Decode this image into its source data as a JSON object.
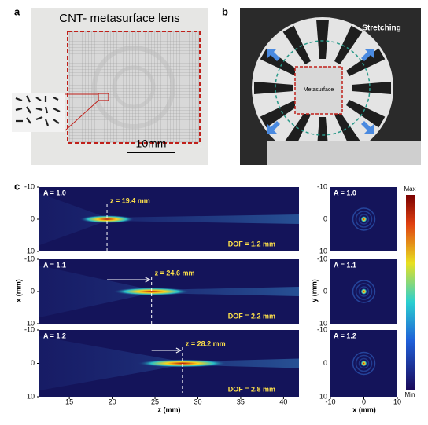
{
  "panel_a": {
    "label": "a",
    "title": "CNT- metasurface lens",
    "scale_bar": "10mm"
  },
  "panel_b": {
    "label": "b",
    "stretching": "Stretching",
    "sample": "Metasurface"
  },
  "panel_c": {
    "label": "c",
    "x_axis_label": "z (mm)",
    "y_axis_label": "x (mm)",
    "zlim": [
      11.5,
      41.8
    ],
    "zticks": [
      15,
      20,
      25,
      30,
      35,
      40
    ],
    "xlim": [
      -10,
      10
    ],
    "xticks": [
      -10,
      0,
      10
    ],
    "rows": [
      {
        "A": {
          "value": 1.0,
          "label": "A = 1.0"
        },
        "focus": {
          "value": 19.4,
          "label": "z = 19.4 mm"
        },
        "dof": {
          "value": 1.2,
          "label": "DOF = 1.2 mm"
        }
      },
      {
        "A": {
          "value": 1.1,
          "label": "A = 1.1"
        },
        "focus": {
          "value": 24.6,
          "label": "z = 24.6 mm"
        },
        "dof": {
          "value": 2.2,
          "label": "DOF = 2.2 mm"
        }
      },
      {
        "A": {
          "value": 1.2,
          "label": "A = 1.2"
        },
        "focus": {
          "value": 28.2,
          "label": "z = 28.2 mm"
        },
        "dof": {
          "value": 2.8,
          "label": "DOF = 2.8 mm"
        }
      }
    ],
    "profile": {
      "x_axis_label": "x (mm)",
      "y_axis_label": "y (mm)",
      "lim": [
        -10,
        10
      ],
      "ticks": [
        -10,
        0,
        10
      ]
    },
    "colorbar": {
      "max": "Max",
      "min": "Min"
    }
  }
}
